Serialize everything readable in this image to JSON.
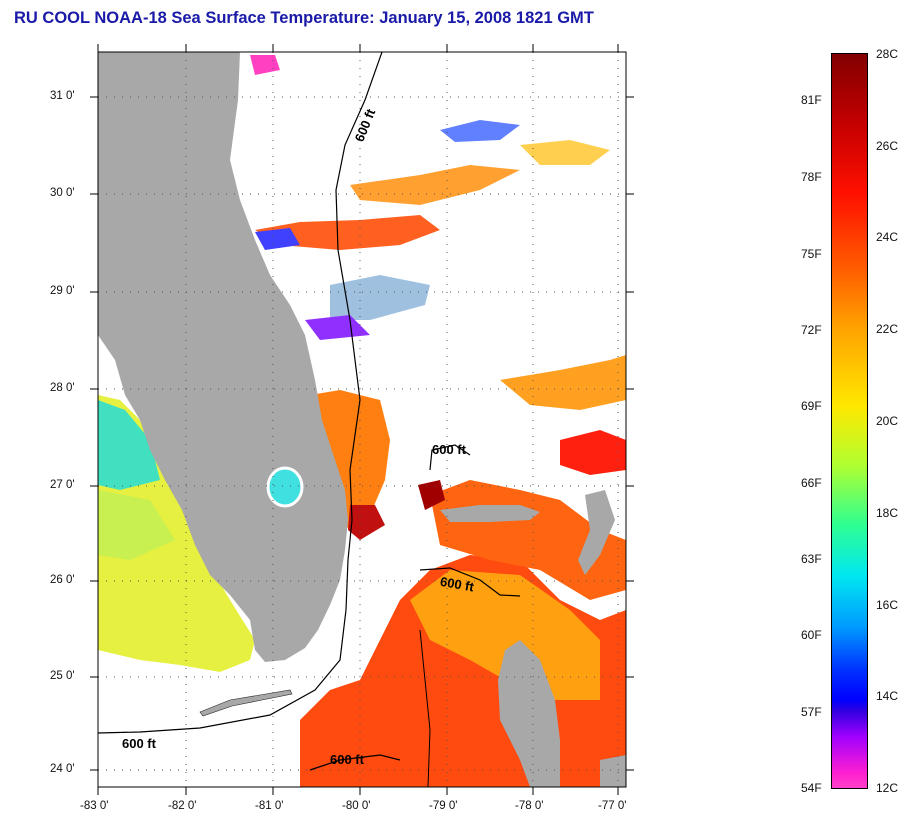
{
  "title": "RU COOL  NOAA-18  Sea Surface Temperature:  January 15, 2008 1821 GMT",
  "map": {
    "lat_labels": [
      "31 0'",
      "30 0'",
      "29 0'",
      "28 0'",
      "27 0'",
      "26 0'",
      "25 0'",
      "24 0'"
    ],
    "lon_labels": [
      "-83 0'",
      "-82 0'",
      "-81 0'",
      "-80 0'",
      "-79 0'",
      "-78 0'",
      "-77 0'"
    ],
    "lat_range": [
      23.9,
      31.4
    ],
    "lon_range": [
      -83.0,
      -76.85
    ],
    "isobath_label": "600 ft",
    "colors": {
      "land": "#a8a8a8",
      "cloud": "#ffffff",
      "grid": "#555555"
    }
  },
  "colorbar": {
    "celsius_labels": [
      "28C",
      "26C",
      "24C",
      "22C",
      "20C",
      "18C",
      "16C",
      "14C",
      "12C"
    ],
    "fahrenheit_labels": [
      "81F",
      "78F",
      "75F",
      "72F",
      "69F",
      "66F",
      "63F",
      "60F",
      "57F",
      "54F"
    ],
    "range_c": [
      12,
      28
    ]
  }
}
